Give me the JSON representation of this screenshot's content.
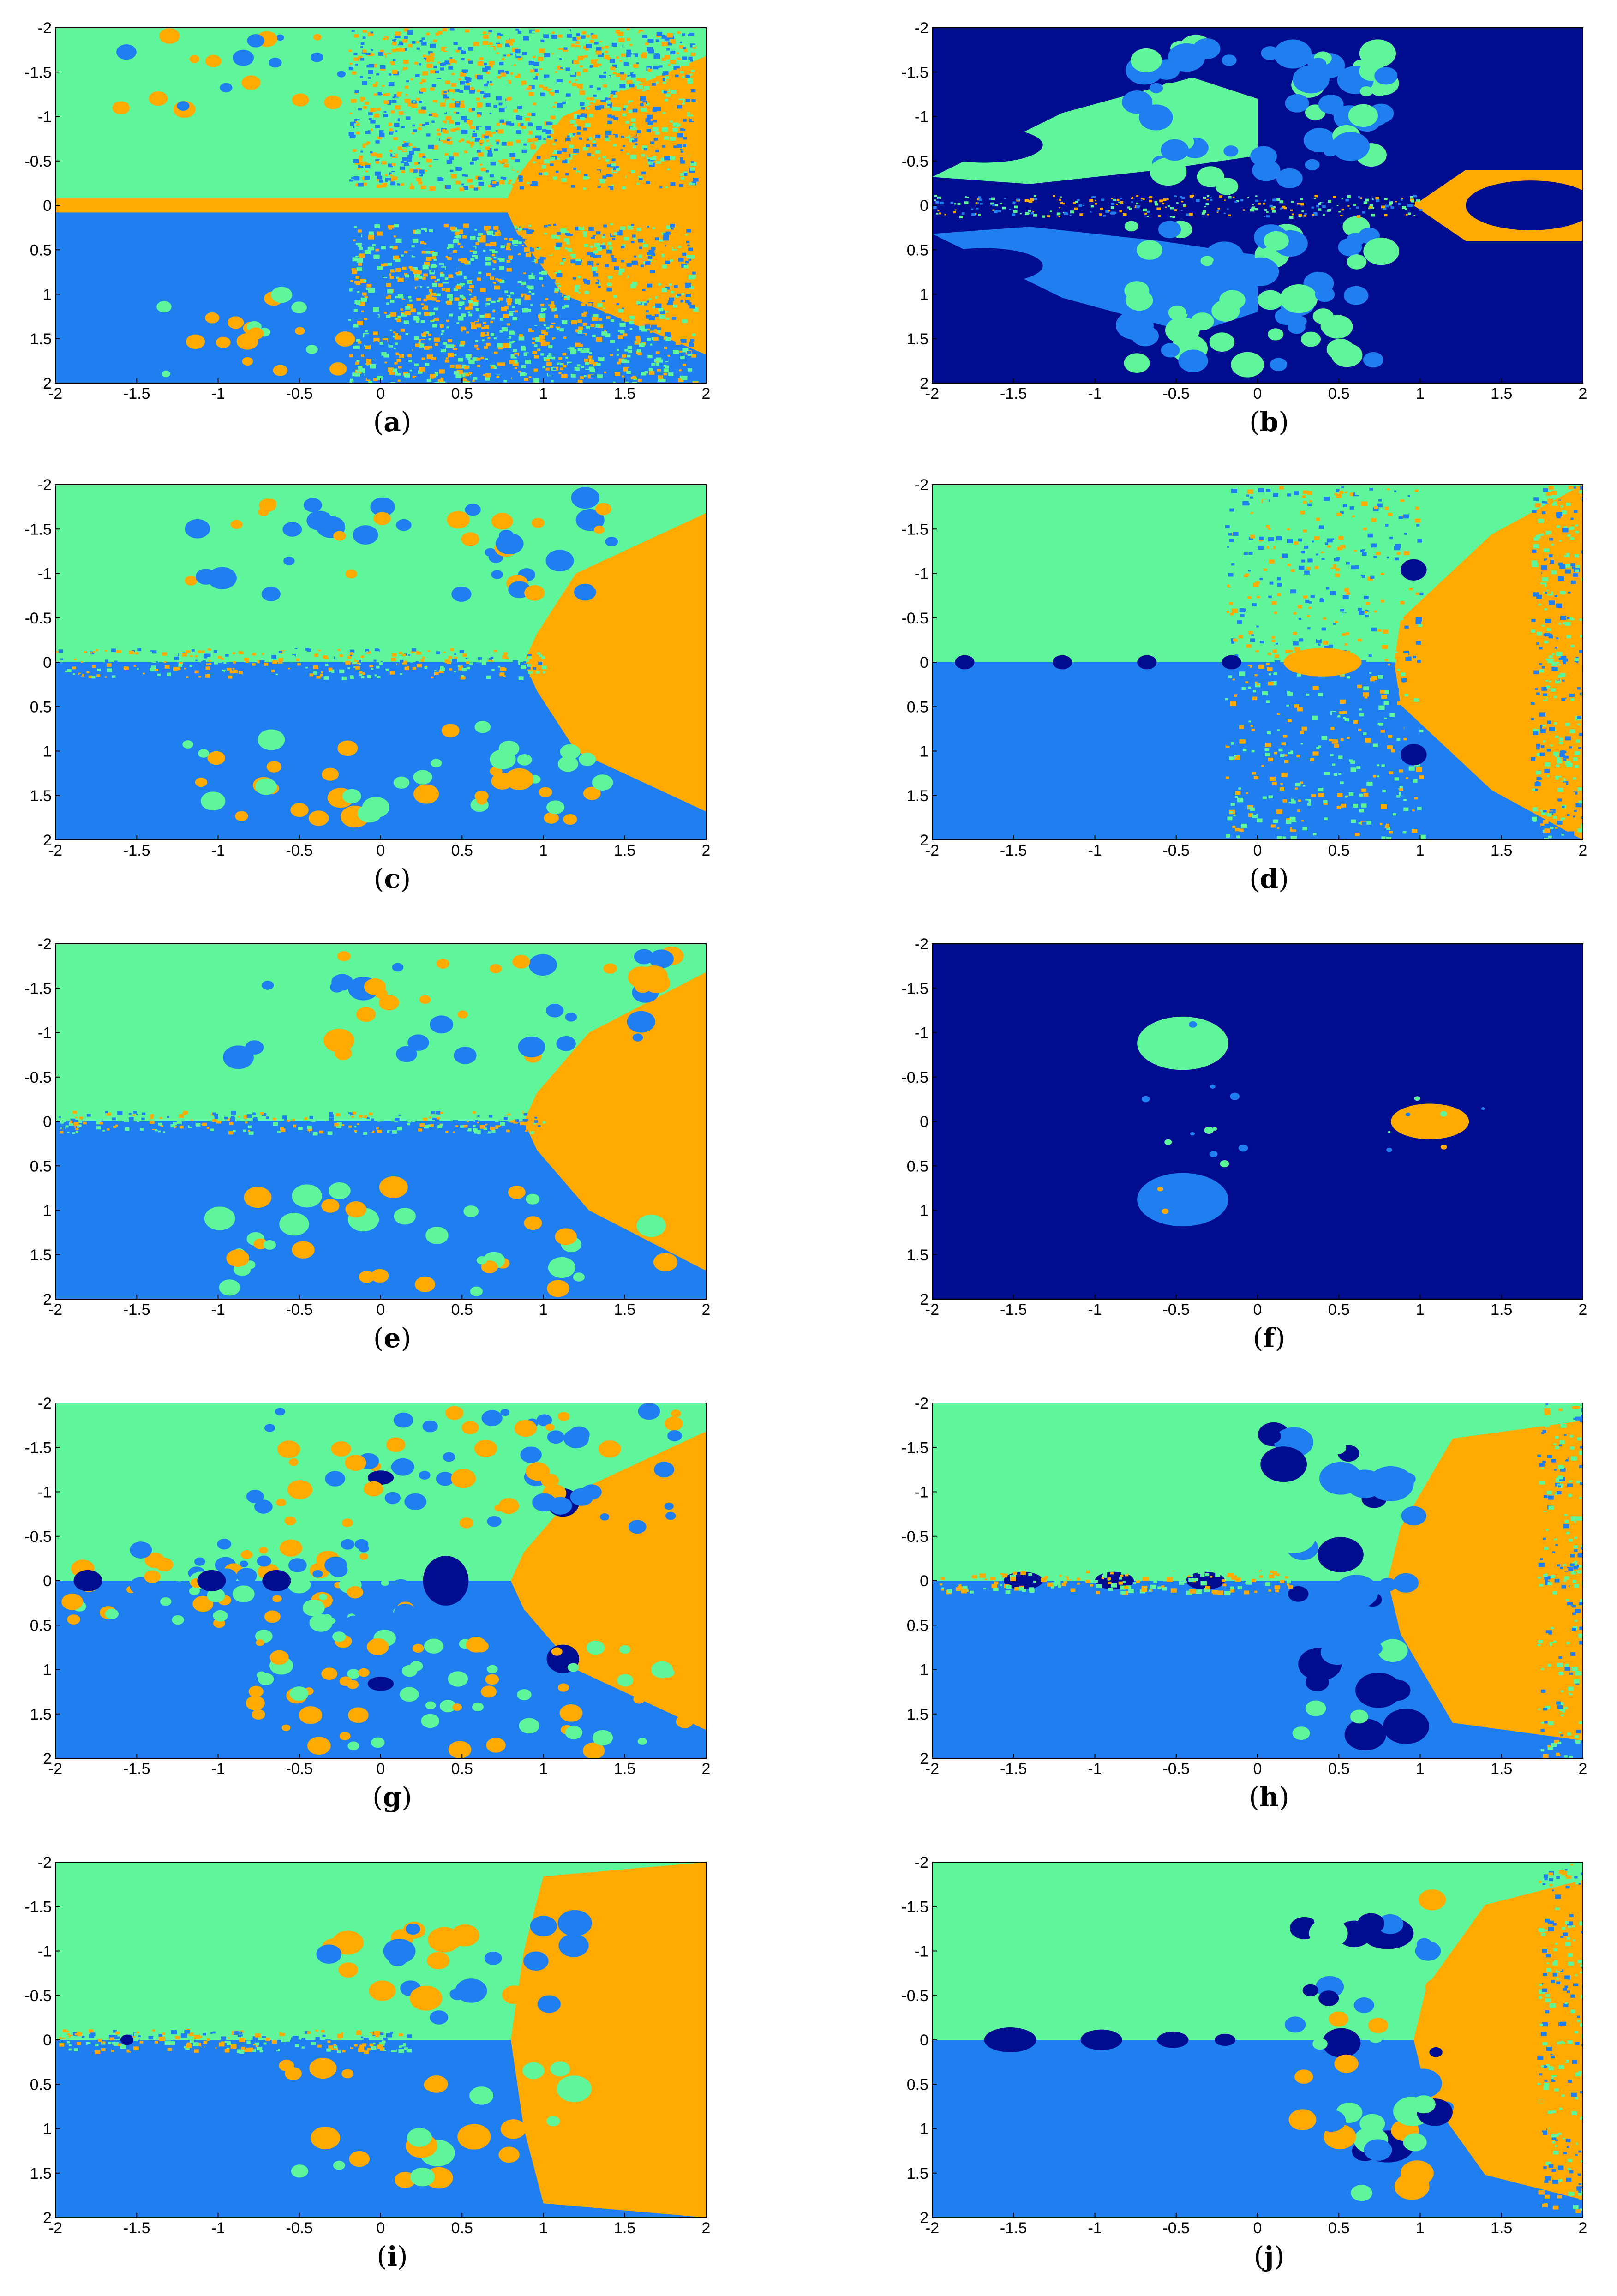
{
  "colors": {
    "green": "#5ef59b",
    "blue": "#1f7ff0",
    "orange": "#ffaa00",
    "navy": "#000d8f",
    "frame": "#000000"
  },
  "axes": {
    "x_ticks": [
      "-2",
      "-1.5",
      "-1",
      "-0.5",
      "0",
      "0.5",
      "1",
      "1.5",
      "2"
    ],
    "y_ticks": [
      "-2",
      "-1.5",
      "-1",
      "-0.5",
      "0",
      "0.5",
      "1",
      "1.5",
      "2"
    ]
  },
  "chart_data": [
    {
      "type": "heatmap",
      "panel_letter": "a",
      "xlim": [
        -2,
        2
      ],
      "ylim": [
        -2,
        2
      ],
      "background": "green",
      "colors": [
        "green",
        "blue",
        "orange"
      ]
    },
    {
      "type": "heatmap",
      "panel_letter": "b",
      "xlim": [
        -2,
        2
      ],
      "ylim": [
        -2,
        2
      ],
      "background": "navy",
      "colors": [
        "navy",
        "green",
        "blue",
        "orange"
      ]
    },
    {
      "type": "heatmap",
      "panel_letter": "c",
      "xlim": [
        -2,
        2
      ],
      "ylim": [
        -2,
        2
      ],
      "background": "green",
      "colors": [
        "green",
        "blue",
        "orange"
      ]
    },
    {
      "type": "heatmap",
      "panel_letter": "d",
      "xlim": [
        -2,
        2
      ],
      "ylim": [
        -2,
        2
      ],
      "background": "green",
      "colors": [
        "green",
        "blue",
        "orange",
        "navy"
      ]
    },
    {
      "type": "heatmap",
      "panel_letter": "e",
      "xlim": [
        -2,
        2
      ],
      "ylim": [
        -2,
        2
      ],
      "background": "green",
      "colors": [
        "green",
        "blue",
        "orange"
      ]
    },
    {
      "type": "heatmap",
      "panel_letter": "f",
      "xlim": [
        -2,
        2
      ],
      "ylim": [
        -2,
        2
      ],
      "background": "navy",
      "colors": [
        "navy",
        "green",
        "blue",
        "orange"
      ]
    },
    {
      "type": "heatmap",
      "panel_letter": "g",
      "xlim": [
        -2,
        2
      ],
      "ylim": [
        -2,
        2
      ],
      "background": "green",
      "colors": [
        "green",
        "blue",
        "orange",
        "navy"
      ]
    },
    {
      "type": "heatmap",
      "panel_letter": "h",
      "xlim": [
        -2,
        2
      ],
      "ylim": [
        -2,
        2
      ],
      "background": "green",
      "colors": [
        "green",
        "blue",
        "orange",
        "navy"
      ]
    },
    {
      "type": "heatmap",
      "panel_letter": "i",
      "xlim": [
        -2,
        2
      ],
      "ylim": [
        -2,
        2
      ],
      "background": "green",
      "colors": [
        "green",
        "blue",
        "orange",
        "navy"
      ]
    },
    {
      "type": "heatmap",
      "panel_letter": "j",
      "xlim": [
        -2,
        2
      ],
      "ylim": [
        -2,
        2
      ],
      "background": "green",
      "colors": [
        "green",
        "blue",
        "orange",
        "navy"
      ]
    }
  ],
  "captions": [
    {
      "open": "(",
      "letter": "a",
      "close": ")"
    },
    {
      "open": "(",
      "letter": "b",
      "close": ")"
    },
    {
      "open": "(",
      "letter": "c",
      "close": ")"
    },
    {
      "open": "(",
      "letter": "d",
      "close": ")"
    },
    {
      "open": "(",
      "letter": "e",
      "close": ")"
    },
    {
      "open": "(",
      "letter": "f",
      "close": ")"
    },
    {
      "open": "(",
      "letter": "g",
      "close": ")"
    },
    {
      "open": "(",
      "letter": "h",
      "close": ")"
    },
    {
      "open": "(",
      "letter": "i",
      "close": ")"
    },
    {
      "open": "(",
      "letter": "j",
      "close": ")"
    }
  ]
}
